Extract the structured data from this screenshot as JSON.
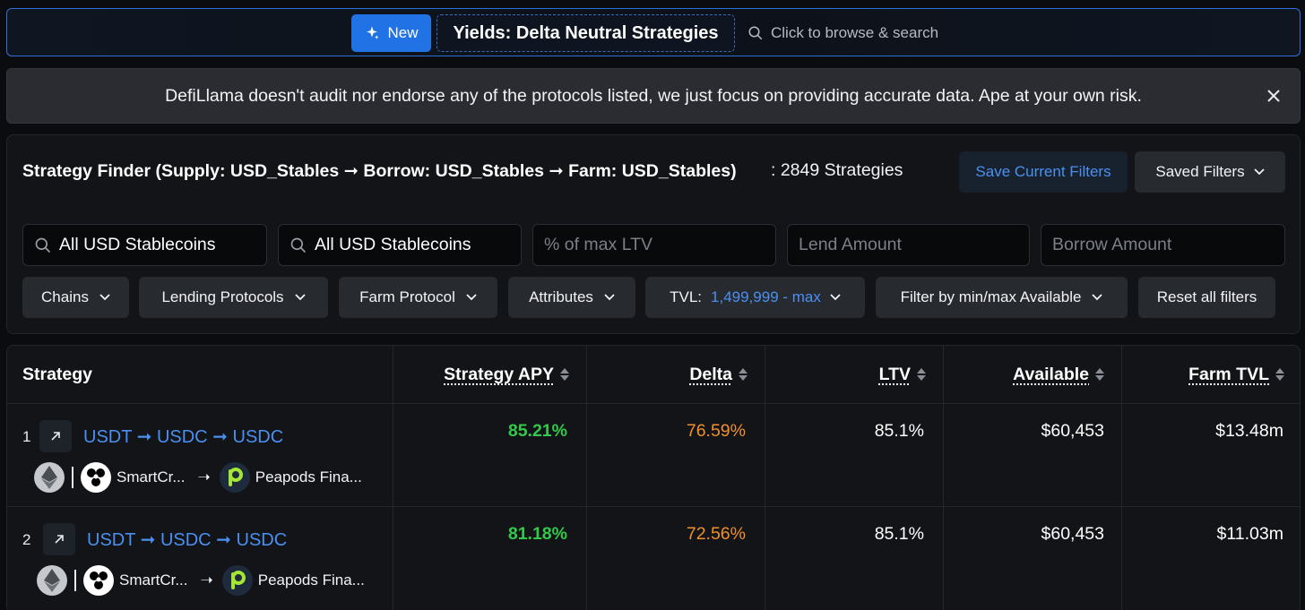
{
  "header": {
    "new_label": "New",
    "page_title": "Yields: Delta Neutral Strategies",
    "search_hint": "Click to browse & search"
  },
  "disclaimer": {
    "text": "DefiLlama doesn't audit nor endorse any of the protocols listed, we just focus on providing accurate data. Ape at your own risk."
  },
  "finder": {
    "title": "Strategy Finder (Supply: USD_Stables ➞ Borrow: USD_Stables ➞ Farm: USD_Stables)",
    "count": ": 2849 Strategies",
    "save_label": "Save Current Filters",
    "saved_label": "Saved Filters",
    "supply_token": "All USD Stablecoins",
    "borrow_token": "All USD Stablecoins",
    "ltv_placeholder": "% of max LTV",
    "lend_placeholder": "Lend Amount",
    "borrow_placeholder": "Borrow Amount",
    "filters": {
      "chains": "Chains",
      "lending": "Lending Protocols",
      "farm": "Farm Protocol",
      "attributes": "Attributes",
      "tvl_label": "TVL:",
      "tvl_value": "1,499,999 - max",
      "available": "Filter by min/max Available",
      "reset": "Reset all filters"
    }
  },
  "table": {
    "columns": {
      "strategy": "Strategy",
      "apy": "Strategy APY",
      "delta": "Delta",
      "ltv": "LTV",
      "available": "Available",
      "farm_tvl": "Farm TVL"
    },
    "rows": [
      {
        "index": "1",
        "route": "USDT ➞ USDC ➞ USDC",
        "lend_protocol": "SmartCr...",
        "farm_protocol": "Peapods Fina...",
        "apy": "85.21%",
        "delta": "76.59%",
        "ltv": "85.1%",
        "available": "$60,453",
        "farm_tvl": "$13.48m"
      },
      {
        "index": "2",
        "route": "USDT ➞ USDC ➞ USDC",
        "lend_protocol": "SmartCr...",
        "farm_protocol": "Peapods Fina...",
        "apy": "81.18%",
        "delta": "72.56%",
        "ltv": "85.1%",
        "available": "$60,453",
        "farm_tvl": "$11.03m"
      }
    ]
  },
  "colors": {
    "accent_blue": "#4b8ff0",
    "apy_green": "#34c84a",
    "delta_orange": "#f0902b"
  }
}
